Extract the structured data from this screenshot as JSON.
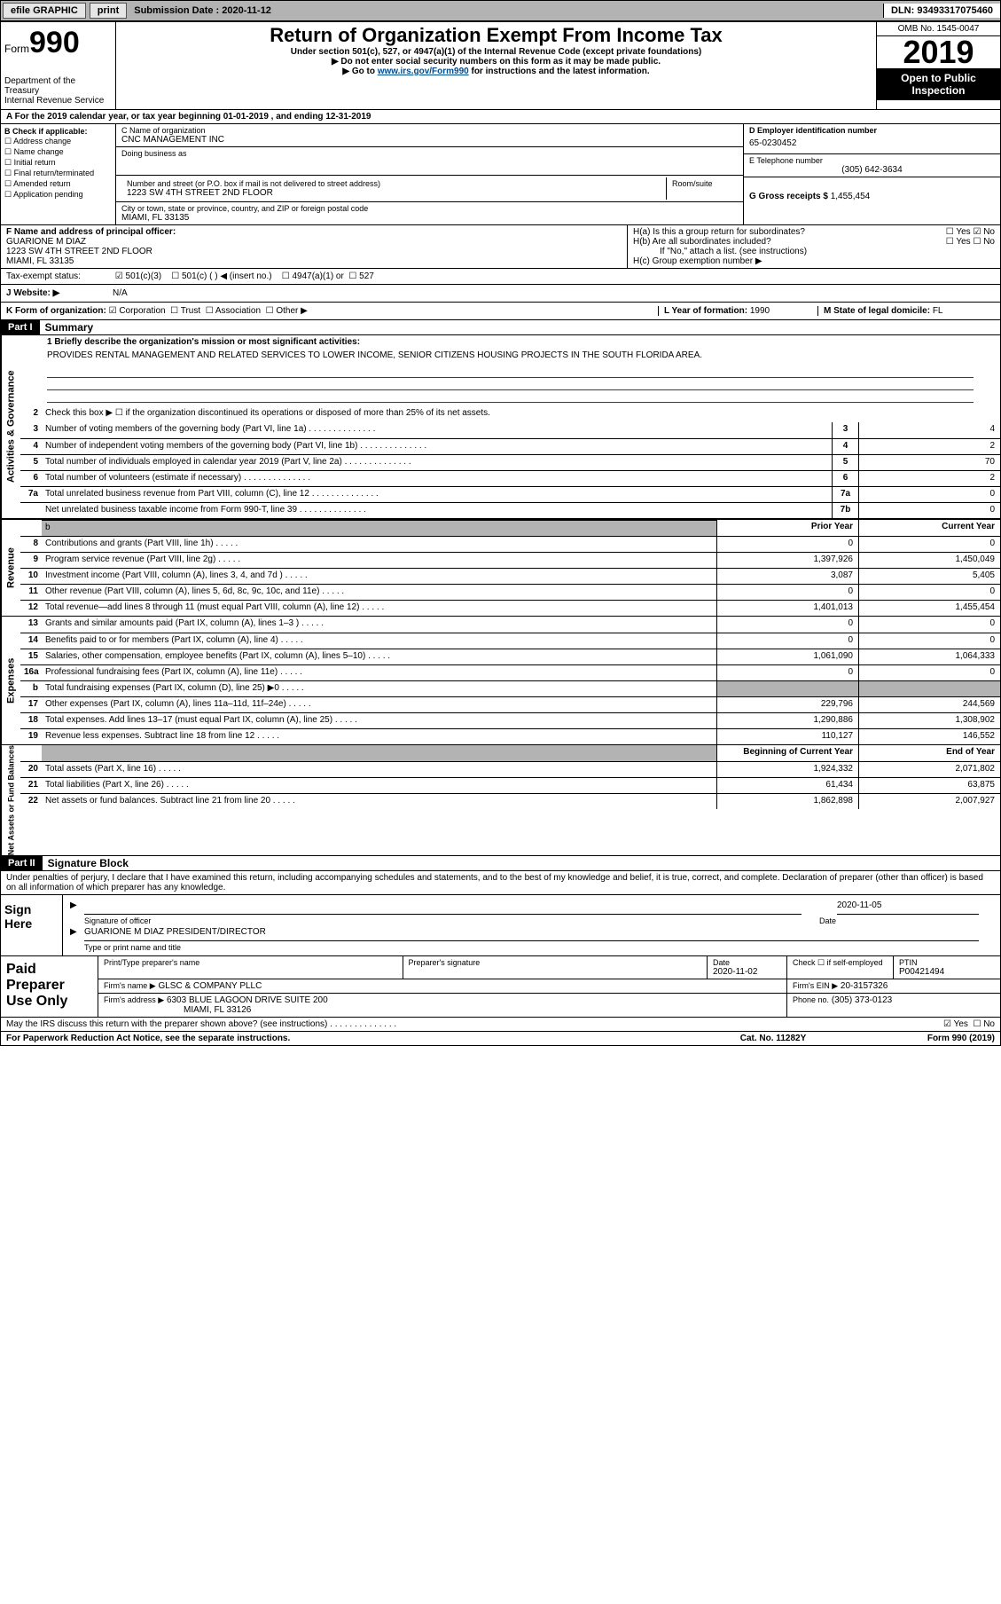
{
  "topbar": {
    "efile": "efile GRAPHIC",
    "print": "print",
    "sub_date_label": "Submission Date : 2020-11-12",
    "dln": "DLN: 93493317075460"
  },
  "header": {
    "form_label": "Form",
    "form_num": "990",
    "dept": "Department of the Treasury\nInternal Revenue Service",
    "title": "Return of Organization Exempt From Income Tax",
    "sub1": "Under section 501(c), 527, or 4947(a)(1) of the Internal Revenue Code (except private foundations)",
    "sub2": "Do not enter social security numbers on this form as it may be made public.",
    "sub3_pre": "Go to ",
    "sub3_link": "www.irs.gov/Form990",
    "sub3_post": " for instructions and the latest information.",
    "omb": "OMB No. 1545-0047",
    "year": "2019",
    "open": "Open to Public Inspection"
  },
  "period": "A For the 2019 calendar year, or tax year beginning 01-01-2019   , and ending 12-31-2019",
  "boxB": {
    "label": "B Check if applicable:",
    "items": [
      "Address change",
      "Name change",
      "Initial return",
      "Final return/terminated",
      "Amended return",
      "Application pending"
    ]
  },
  "boxC": {
    "name_label": "C Name of organization",
    "name": "CNC MANAGEMENT INC",
    "dba_label": "Doing business as",
    "street_label": "Number and street (or P.O. box if mail is not delivered to street address)",
    "room_label": "Room/suite",
    "street": "1223 SW 4TH STREET 2ND FLOOR",
    "city_label": "City or town, state or province, country, and ZIP or foreign postal code",
    "city": "MIAMI, FL  33135"
  },
  "boxD": {
    "label": "D Employer identification number",
    "value": "65-0230452"
  },
  "boxE": {
    "label": "E Telephone number",
    "value": "(305) 642-3634"
  },
  "boxG": {
    "label": "G Gross receipts $",
    "value": "1,455,454"
  },
  "boxF": {
    "label": "F  Name and address of principal officer:",
    "name": "GUARIONE M DIAZ",
    "addr1": "1223 SW 4TH STREET 2ND FLOOR",
    "addr2": "MIAMI, FL  33135"
  },
  "boxH": {
    "ha_label": "H(a)  Is this a group return for subordinates?",
    "ha_yes": "Yes",
    "ha_no": "No",
    "hb_label": "H(b)  Are all subordinates included?",
    "hb_yes": "Yes",
    "hb_no": "No",
    "hb_note": "If \"No,\" attach a list. (see instructions)",
    "hc_label": "H(c)  Group exemption number ▶"
  },
  "taxexempt": {
    "label": "Tax-exempt status:",
    "opt1": "501(c)(3)",
    "opt2": "501(c) (   ) ◀ (insert no.)",
    "opt3": "4947(a)(1) or",
    "opt4": "527"
  },
  "boxJ": {
    "label": "J   Website: ▶",
    "value": "N/A"
  },
  "boxK": {
    "label": "K Form of organization:",
    "corp": "Corporation",
    "trust": "Trust",
    "assoc": "Association",
    "other": "Other ▶"
  },
  "boxL": {
    "label": "L Year of formation:",
    "value": "1990"
  },
  "boxM": {
    "label": "M State of legal domicile:",
    "value": "FL"
  },
  "part1": {
    "label": "Part I",
    "title": "Summary",
    "line1_label": "1  Briefly describe the organization's mission or most significant activities:",
    "mission": "PROVIDES RENTAL MANAGEMENT AND RELATED SERVICES TO LOWER INCOME, SENIOR CITIZENS HOUSING PROJECTS IN THE SOUTH FLORIDA AREA.",
    "line2": "Check this box ▶ ☐  if the organization discontinued its operations or disposed of more than 25% of its net assets.",
    "prior_year": "Prior Year",
    "current_year": "Current Year",
    "beg_year": "Beginning of Current Year",
    "end_year": "End of Year"
  },
  "tabs": {
    "gov": "Activities & Governance",
    "rev": "Revenue",
    "exp": "Expenses",
    "net": "Net Assets or Fund Balances"
  },
  "lines_gov": [
    {
      "n": "3",
      "d": "Number of voting members of the governing body (Part VI, line 1a)",
      "box": "3",
      "v": "4"
    },
    {
      "n": "4",
      "d": "Number of independent voting members of the governing body (Part VI, line 1b)",
      "box": "4",
      "v": "2"
    },
    {
      "n": "5",
      "d": "Total number of individuals employed in calendar year 2019 (Part V, line 2a)",
      "box": "5",
      "v": "70"
    },
    {
      "n": "6",
      "d": "Total number of volunteers (estimate if necessary)",
      "box": "6",
      "v": "2"
    },
    {
      "n": "7a",
      "d": "Total unrelated business revenue from Part VIII, column (C), line 12",
      "box": "7a",
      "v": "0"
    },
    {
      "n": "",
      "d": "Net unrelated business taxable income from Form 990-T, line 39",
      "box": "7b",
      "v": "0"
    }
  ],
  "lines_rev": [
    {
      "n": "8",
      "d": "Contributions and grants (Part VIII, line 1h)",
      "py": "0",
      "cy": "0"
    },
    {
      "n": "9",
      "d": "Program service revenue (Part VIII, line 2g)",
      "py": "1,397,926",
      "cy": "1,450,049"
    },
    {
      "n": "10",
      "d": "Investment income (Part VIII, column (A), lines 3, 4, and 7d )",
      "py": "3,087",
      "cy": "5,405"
    },
    {
      "n": "11",
      "d": "Other revenue (Part VIII, column (A), lines 5, 6d, 8c, 9c, 10c, and 11e)",
      "py": "0",
      "cy": "0"
    },
    {
      "n": "12",
      "d": "Total revenue—add lines 8 through 11 (must equal Part VIII, column (A), line 12)",
      "py": "1,401,013",
      "cy": "1,455,454"
    }
  ],
  "lines_exp": [
    {
      "n": "13",
      "d": "Grants and similar amounts paid (Part IX, column (A), lines 1–3 )",
      "py": "0",
      "cy": "0"
    },
    {
      "n": "14",
      "d": "Benefits paid to or for members (Part IX, column (A), line 4)",
      "py": "0",
      "cy": "0"
    },
    {
      "n": "15",
      "d": "Salaries, other compensation, employee benefits (Part IX, column (A), lines 5–10)",
      "py": "1,061,090",
      "cy": "1,064,333"
    },
    {
      "n": "16a",
      "d": "Professional fundraising fees (Part IX, column (A), line 11e)",
      "py": "0",
      "cy": "0"
    },
    {
      "n": "b",
      "d": "Total fundraising expenses (Part IX, column (D), line 25) ▶0",
      "py": "",
      "cy": "",
      "shaded": true
    },
    {
      "n": "17",
      "d": "Other expenses (Part IX, column (A), lines 11a–11d, 11f–24e)",
      "py": "229,796",
      "cy": "244,569"
    },
    {
      "n": "18",
      "d": "Total expenses. Add lines 13–17 (must equal Part IX, column (A), line 25)",
      "py": "1,290,886",
      "cy": "1,308,902"
    },
    {
      "n": "19",
      "d": "Revenue less expenses. Subtract line 18 from line 12",
      "py": "110,127",
      "cy": "146,552"
    }
  ],
  "lines_net": [
    {
      "n": "20",
      "d": "Total assets (Part X, line 16)",
      "py": "1,924,332",
      "cy": "2,071,802"
    },
    {
      "n": "21",
      "d": "Total liabilities (Part X, line 26)",
      "py": "61,434",
      "cy": "63,875"
    },
    {
      "n": "22",
      "d": "Net assets or fund balances. Subtract line 21 from line 20",
      "py": "1,862,898",
      "cy": "2,007,927"
    }
  ],
  "part2": {
    "label": "Part II",
    "title": "Signature Block",
    "perjury": "Under penalties of perjury, I declare that I have examined this return, including accompanying schedules and statements, and to the best of my knowledge and belief, it is true, correct, and complete. Declaration of preparer (other than officer) is based on all information of which preparer has any knowledge.",
    "sign_here": "Sign Here",
    "sig_officer": "Signature of officer",
    "date_label": "Date",
    "date_val": "2020-11-05",
    "name_title": "GUARIONE M DIAZ  PRESIDENT/DIRECTOR",
    "type_name": "Type or print name and title"
  },
  "preparer": {
    "label": "Paid Preparer Use Only",
    "print_name": "Print/Type preparer's name",
    "prep_sig": "Preparer's signature",
    "date": "Date",
    "date_val": "2020-11-02",
    "check_self": "Check ☐ if self-employed",
    "ptin_label": "PTIN",
    "ptin": "P00421494",
    "firm_name_label": "Firm's name   ▶",
    "firm_name": "GLSC & COMPANY PLLC",
    "firm_ein_label": "Firm's EIN ▶",
    "firm_ein": "20-3157326",
    "firm_addr_label": "Firm's address ▶",
    "firm_addr": "6303 BLUE LAGOON DRIVE SUITE 200",
    "firm_city": "MIAMI, FL  33126",
    "phone_label": "Phone no.",
    "phone": "(305) 373-0123"
  },
  "discuss": {
    "q": "May the IRS discuss this return with the preparer shown above? (see instructions)",
    "yes": "Yes",
    "no": "No"
  },
  "footer": {
    "paperwork": "For Paperwork Reduction Act Notice, see the separate instructions.",
    "cat": "Cat. No. 11282Y",
    "form": "Form 990 (2019)"
  }
}
